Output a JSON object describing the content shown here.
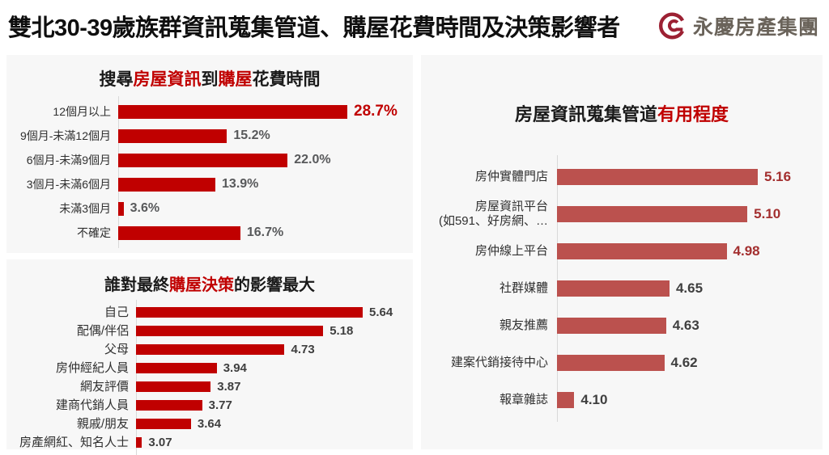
{
  "header": {
    "title": "雙北30-39歲族群資訊蒐集管道、購屋花費時間及決策影響者",
    "brand": {
      "name": "永慶房產集團",
      "logo_color": "#9c2133",
      "text_color": "#6a635a"
    }
  },
  "colors": {
    "accent_red": "#c00000",
    "brick_bar": "#bb514e",
    "value_gray": "#58595b",
    "value_dark": "#3f3f3f",
    "value_red": "#a32f2f",
    "panel_bg": "#f7f7f7",
    "axis_line": "#d9d9d9"
  },
  "chart_data": [
    {
      "id": "time-from-search-to-purchase",
      "type": "bar",
      "orientation": "horizontal",
      "title_plain": "搜尋房屋資訊到購屋花費時間",
      "title_segments": [
        {
          "text": "搜尋",
          "red": false
        },
        {
          "text": "房屋資訊",
          "red": true
        },
        {
          "text": "到",
          "red": false
        },
        {
          "text": "購屋",
          "red": true
        },
        {
          "text": "花費時間",
          "red": false
        }
      ],
      "categories": [
        "12個月以上",
        "9個月-未滿12個月",
        "6個月-未滿9個月",
        "3個月-未滿6個月",
        "未滿3個月",
        "不確定"
      ],
      "values": [
        28.7,
        15.2,
        22.0,
        13.9,
        3.6,
        16.7
      ],
      "value_labels": [
        "28.7%",
        "15.2%",
        "22.0%",
        "13.9%",
        "3.6%",
        "16.7%"
      ],
      "value_highlight_indexes": [
        0
      ],
      "bar_color": "#c00000",
      "value_color": "#58595b",
      "value_highlight_color": "#c00000",
      "axis_min": 3,
      "axis_max": 28.7,
      "grid": false,
      "legend": false
    },
    {
      "id": "biggest-influence-on-final-decision",
      "type": "bar",
      "orientation": "horizontal",
      "title_plain": "誰對最終購屋決策的影響最大",
      "title_segments": [
        {
          "text": "誰對最終",
          "red": false
        },
        {
          "text": "購屋決策",
          "red": true
        },
        {
          "text": "的影響最大",
          "red": false
        }
      ],
      "categories": [
        "自己",
        "配偶/伴侶",
        "父母",
        "房仲經紀人員",
        "網友評價",
        "建商代銷人員",
        "親戚/朋友",
        "房產網紅、知名人士"
      ],
      "values": [
        5.64,
        5.18,
        4.73,
        3.94,
        3.87,
        3.77,
        3.64,
        3.07
      ],
      "value_labels": [
        "5.64",
        "5.18",
        "4.73",
        "3.94",
        "3.87",
        "3.77",
        "3.64",
        "3.07"
      ],
      "value_highlight_indexes": [],
      "bar_color": "#c00000",
      "value_color": "#3f3f3f",
      "value_highlight_color": "#c00000",
      "axis_min": 3,
      "axis_max": 5.64,
      "grid": false,
      "legend": false
    },
    {
      "id": "usefulness-of-info-channels",
      "type": "bar",
      "orientation": "horizontal",
      "title_plain": "房屋資訊蒐集管道有用程度",
      "title_segments": [
        {
          "text": "房屋資訊蒐集管道",
          "red": false
        },
        {
          "text": "有用程度",
          "red": true
        }
      ],
      "categories": [
        "房仲實體門店",
        "房屋資訊平台\n(如591、好房網、…",
        "房仲線上平台",
        "社群媒體",
        "親友推薦",
        "建案代銷接待中心",
        "報章雜誌"
      ],
      "values": [
        5.16,
        5.1,
        4.98,
        4.65,
        4.63,
        4.62,
        4.1
      ],
      "value_labels": [
        "5.16",
        "5.10",
        "4.98",
        "4.65",
        "4.63",
        "4.62",
        "4.10"
      ],
      "value_highlight_indexes": [
        0,
        1,
        2
      ],
      "bar_color": "#bb514e",
      "value_color": "#3f3f3f",
      "value_highlight_color": "#a32f2f",
      "axis_min": 4,
      "axis_max": 5.16,
      "grid": false,
      "legend": false
    }
  ]
}
